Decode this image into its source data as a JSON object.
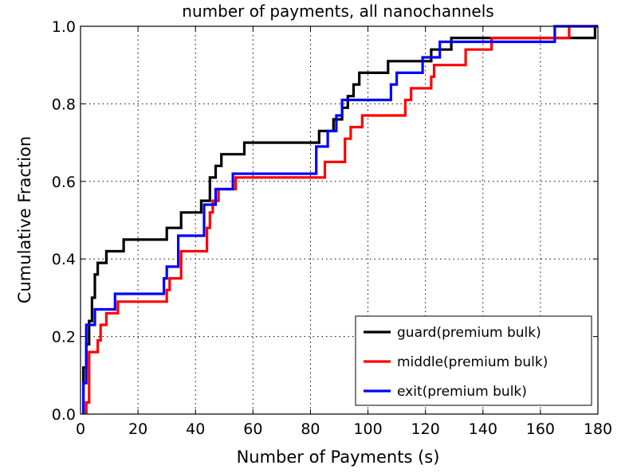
{
  "chart_data": {
    "type": "line",
    "title": "number of payments, all nanochannels",
    "xlabel": "Number of Payments (s)",
    "ylabel": "Cumulative Fraction",
    "xlim": [
      0,
      180
    ],
    "ylim": [
      0.0,
      1.0
    ],
    "x_ticks": [
      "0",
      "20",
      "40",
      "60",
      "80",
      "100",
      "120",
      "140",
      "160",
      "180"
    ],
    "y_ticks": [
      "0.0",
      "0.2",
      "0.4",
      "0.6",
      "0.8",
      "1.0"
    ],
    "grid": true,
    "legend_position": "lower-right",
    "step": true,
    "series": [
      {
        "name": "guard(premium bulk)",
        "color": "#000000",
        "points": [
          [
            1,
            0
          ],
          [
            1,
            0.12
          ],
          [
            2,
            0.12
          ],
          [
            2,
            0.18
          ],
          [
            3,
            0.18
          ],
          [
            3,
            0.24
          ],
          [
            4,
            0.24
          ],
          [
            4,
            0.3
          ],
          [
            5,
            0.3
          ],
          [
            5,
            0.36
          ],
          [
            6,
            0.36
          ],
          [
            6,
            0.39
          ],
          [
            9,
            0.39
          ],
          [
            9,
            0.42
          ],
          [
            15,
            0.42
          ],
          [
            15,
            0.45
          ],
          [
            30,
            0.45
          ],
          [
            30,
            0.48
          ],
          [
            35,
            0.48
          ],
          [
            35,
            0.52
          ],
          [
            42,
            0.52
          ],
          [
            42,
            0.55
          ],
          [
            45,
            0.55
          ],
          [
            45,
            0.61
          ],
          [
            47,
            0.61
          ],
          [
            47,
            0.64
          ],
          [
            49,
            0.64
          ],
          [
            49,
            0.67
          ],
          [
            57,
            0.67
          ],
          [
            57,
            0.7
          ],
          [
            83,
            0.7
          ],
          [
            83,
            0.73
          ],
          [
            88,
            0.73
          ],
          [
            88,
            0.76
          ],
          [
            91,
            0.76
          ],
          [
            91,
            0.79
          ],
          [
            93,
            0.79
          ],
          [
            93,
            0.82
          ],
          [
            95,
            0.82
          ],
          [
            95,
            0.85
          ],
          [
            97,
            0.85
          ],
          [
            97,
            0.88
          ],
          [
            107,
            0.88
          ],
          [
            107,
            0.91
          ],
          [
            122,
            0.91
          ],
          [
            122,
            0.94
          ],
          [
            129,
            0.94
          ],
          [
            129,
            0.97
          ],
          [
            179,
            0.97
          ],
          [
            179,
            1.0
          ],
          [
            180,
            1.0
          ]
        ]
      },
      {
        "name": "middle(premium bulk)",
        "color": "#ff0000",
        "points": [
          [
            2,
            0
          ],
          [
            2,
            0.03
          ],
          [
            3,
            0.03
          ],
          [
            3,
            0.16
          ],
          [
            6,
            0.16
          ],
          [
            6,
            0.19
          ],
          [
            7,
            0.19
          ],
          [
            7,
            0.23
          ],
          [
            9,
            0.23
          ],
          [
            9,
            0.26
          ],
          [
            13,
            0.26
          ],
          [
            13,
            0.29
          ],
          [
            30,
            0.29
          ],
          [
            30,
            0.32
          ],
          [
            31,
            0.32
          ],
          [
            31,
            0.35
          ],
          [
            35,
            0.35
          ],
          [
            35,
            0.42
          ],
          [
            44,
            0.42
          ],
          [
            44,
            0.48
          ],
          [
            45,
            0.48
          ],
          [
            45,
            0.52
          ],
          [
            46,
            0.52
          ],
          [
            46,
            0.55
          ],
          [
            48,
            0.55
          ],
          [
            48,
            0.58
          ],
          [
            54,
            0.58
          ],
          [
            54,
            0.61
          ],
          [
            85,
            0.61
          ],
          [
            85,
            0.65
          ],
          [
            92,
            0.65
          ],
          [
            92,
            0.71
          ],
          [
            94,
            0.71
          ],
          [
            94,
            0.74
          ],
          [
            98,
            0.74
          ],
          [
            98,
            0.77
          ],
          [
            113,
            0.77
          ],
          [
            113,
            0.81
          ],
          [
            115,
            0.81
          ],
          [
            115,
            0.84
          ],
          [
            122,
            0.84
          ],
          [
            122,
            0.87
          ],
          [
            123,
            0.87
          ],
          [
            123,
            0.9
          ],
          [
            134,
            0.9
          ],
          [
            134,
            0.94
          ],
          [
            143,
            0.94
          ],
          [
            143,
            0.97
          ],
          [
            170,
            0.97
          ],
          [
            170,
            1.0
          ],
          [
            180,
            1.0
          ]
        ]
      },
      {
        "name": "exit(premium bulk)",
        "color": "#0000ff",
        "points": [
          [
            1,
            0
          ],
          [
            1,
            0.08
          ],
          [
            2,
            0.08
          ],
          [
            2,
            0.23
          ],
          [
            5,
            0.23
          ],
          [
            5,
            0.27
          ],
          [
            12,
            0.27
          ],
          [
            12,
            0.31
          ],
          [
            29,
            0.31
          ],
          [
            29,
            0.35
          ],
          [
            30,
            0.35
          ],
          [
            30,
            0.38
          ],
          [
            34,
            0.38
          ],
          [
            34,
            0.46
          ],
          [
            43,
            0.46
          ],
          [
            43,
            0.54
          ],
          [
            47,
            0.54
          ],
          [
            47,
            0.58
          ],
          [
            53,
            0.58
          ],
          [
            53,
            0.62
          ],
          [
            82,
            0.62
          ],
          [
            82,
            0.69
          ],
          [
            86,
            0.69
          ],
          [
            86,
            0.73
          ],
          [
            89,
            0.73
          ],
          [
            89,
            0.77
          ],
          [
            91,
            0.77
          ],
          [
            91,
            0.81
          ],
          [
            108,
            0.81
          ],
          [
            108,
            0.85
          ],
          [
            110,
            0.85
          ],
          [
            110,
            0.88
          ],
          [
            119,
            0.88
          ],
          [
            119,
            0.92
          ],
          [
            125,
            0.92
          ],
          [
            125,
            0.96
          ],
          [
            165,
            0.96
          ],
          [
            165,
            1.0
          ],
          [
            180,
            1.0
          ]
        ]
      }
    ]
  }
}
